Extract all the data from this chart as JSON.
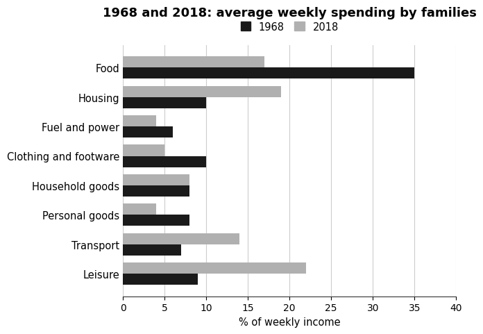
{
  "title": "1968 and 2018: average weekly spending by families",
  "categories": [
    "Food",
    "Housing",
    "Fuel and power",
    "Clothing and footware",
    "Household goods",
    "Personal goods",
    "Transport",
    "Leisure"
  ],
  "values_1968": [
    35,
    10,
    6,
    10,
    8,
    8,
    7,
    9
  ],
  "values_2018": [
    17,
    19,
    4,
    5,
    8,
    4,
    14,
    22
  ],
  "color_1968": "#1a1a1a",
  "color_2018": "#b0b0b0",
  "xlabel": "% of weekly income",
  "xlim": [
    0,
    40
  ],
  "xticks": [
    0,
    5,
    10,
    15,
    20,
    25,
    30,
    35,
    40
  ],
  "legend_labels": [
    "1968",
    "2018"
  ],
  "bar_height": 0.38,
  "title_fontsize": 13,
  "label_fontsize": 10.5,
  "tick_fontsize": 10
}
